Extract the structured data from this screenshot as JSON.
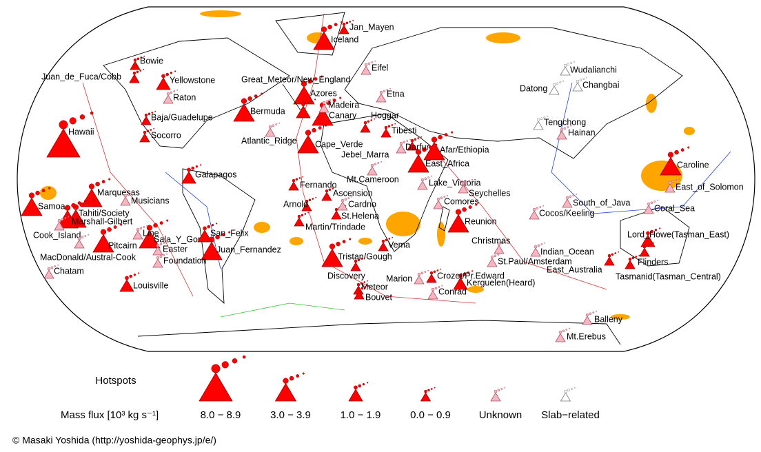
{
  "legend": {
    "title": "Hotspots",
    "axis_label": "Mass flux [10³ kg s⁻¹]",
    "classes": [
      {
        "label": "8.0 − 8.9",
        "hotspots": [
          "Hawaii"
        ]
      },
      {
        "label": "3.0 − 3.9",
        "hotspots": [
          "Iceland",
          "Marquesas",
          "Samoa",
          "Tahiti/Society",
          "Marshall-Gilbert",
          "Pitcairn",
          "Sala_Y_Gomez",
          "Reunion",
          "Afar/Ethiopia",
          "East_Africa",
          "Cape_Verde",
          "Tristan/Gough",
          "Caroline",
          "Bermuda",
          "Azores",
          "Canary",
          "Juan_Fernandez"
        ]
      },
      {
        "label": "1.0 − 1.9",
        "hotspots": [
          "Yellowstone",
          "Galapagos",
          "Kerguelen(Heard)",
          "Louisville",
          "San_Felix",
          "Lord_Howe(Tasman_East)",
          "Great_Meteor/New_England"
        ]
      },
      {
        "label": "0.0 − 0.9",
        "hotspots": [
          "Jan_Mayen",
          "Bowie",
          "Juan_de_Fuca/Cobb",
          "Baja/Guadelupe",
          "Socorro",
          "Hoggar",
          "Tibesti",
          "Darfur",
          "Fernando",
          "Ascension",
          "Arnold",
          "St.Helena",
          "Martin/Trindade",
          "Vema",
          "Discovery",
          "Meteor",
          "Bouvet",
          "Crozet/Pr.Edward",
          "East_Australia",
          "Flinders",
          "Tasmanid(Tasman_Central)"
        ]
      },
      {
        "label": "Unknown",
        "hotspots": [
          "Eifel",
          "Raton",
          "Madeira",
          "Etna",
          "Atlantic_Ridge",
          "Jebel_Marra",
          "Mt.Cameroon",
          "Lake_Victoria",
          "Seychelles",
          "Comores",
          "Cardno",
          "Musicians",
          "Cook_Island",
          "Line",
          "Easter",
          "Foundation",
          "MacDonald/Austral-Cook",
          "Chatam",
          "Marion",
          "Conrad",
          "Christmas",
          "St.Paul/Amsterdam",
          "Indian_Ocean",
          "Cocos/Keeling",
          "South_of_Java",
          "Coral_Sea",
          "East_of_Solomon",
          "Hainan",
          "Balleny",
          "Mt.Erebus"
        ]
      },
      {
        "label": "Slab−related",
        "hotspots": [
          "Wudalianchi",
          "Changbai",
          "Datong",
          "Tengchong"
        ]
      }
    ]
  },
  "credit": "© Masaki Yoshida (http://yoshida-geophys.jp/e/)"
}
